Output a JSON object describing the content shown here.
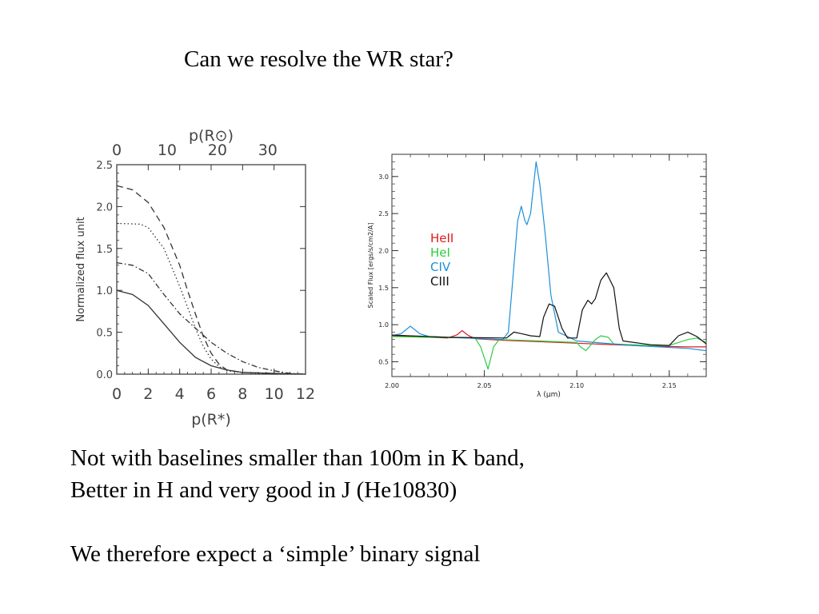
{
  "slide": {
    "title": "Can we resolve the WR star?",
    "body_lines": [
      "Not with baselines smaller than 100m in K band,",
      "Better in H and very good in J (He10830)",
      "We therefore expect a ‘simple’ binary signal"
    ]
  },
  "chart_data": [
    {
      "type": "line",
      "xlabel": "p(R*)",
      "ylabel": "Normalized flux unit",
      "top_axis_label": "p(R⊙)",
      "xlim": [
        0,
        12
      ],
      "ylim": [
        0,
        2.5
      ],
      "x_ticks": [
        "0",
        "2",
        "4",
        "6",
        "8",
        "10",
        "12"
      ],
      "y_ticks": [
        "0.0",
        "0.5",
        "1.0",
        "1.5",
        "2.0",
        "2.5"
      ],
      "top_ticks": [
        {
          "label": "0",
          "at_x": 0
        },
        {
          "label": "10",
          "at_x": 3.2
        },
        {
          "label": "20",
          "at_x": 6.4
        },
        {
          "label": "30",
          "at_x": 9.6
        }
      ],
      "series": [
        {
          "style": "dashed",
          "color": "#333333",
          "points": [
            [
              0,
              2.25
            ],
            [
              1,
              2.2
            ],
            [
              2,
              2.05
            ],
            [
              3,
              1.75
            ],
            [
              4,
              1.3
            ],
            [
              4.5,
              1.0
            ],
            [
              5,
              0.72
            ],
            [
              5.5,
              0.45
            ],
            [
              6,
              0.25
            ],
            [
              6.5,
              0.12
            ],
            [
              7,
              0.05
            ],
            [
              8,
              0.02
            ],
            [
              10,
              0.01
            ],
            [
              12,
              0.0
            ]
          ]
        },
        {
          "style": "dotted",
          "color": "#333333",
          "points": [
            [
              0,
              1.8
            ],
            [
              1.5,
              1.79
            ],
            [
              2,
              1.75
            ],
            [
              3,
              1.5
            ],
            [
              4,
              1.05
            ],
            [
              4.5,
              0.8
            ],
            [
              5,
              0.55
            ],
            [
              5.5,
              0.33
            ],
            [
              6,
              0.18
            ],
            [
              6.5,
              0.09
            ],
            [
              7,
              0.04
            ],
            [
              8,
              0.02
            ],
            [
              10,
              0.0
            ],
            [
              12,
              0.0
            ]
          ]
        },
        {
          "style": "dashdot",
          "color": "#333333",
          "points": [
            [
              0,
              1.33
            ],
            [
              1,
              1.3
            ],
            [
              2,
              1.2
            ],
            [
              3,
              0.95
            ],
            [
              4,
              0.72
            ],
            [
              5,
              0.55
            ],
            [
              6,
              0.38
            ],
            [
              7,
              0.25
            ],
            [
              8,
              0.15
            ],
            [
              9,
              0.08
            ],
            [
              10,
              0.04
            ],
            [
              11,
              0.01
            ],
            [
              12,
              0.0
            ]
          ]
        },
        {
          "style": "solid",
          "color": "#333333",
          "points": [
            [
              0,
              1.0
            ],
            [
              1,
              0.95
            ],
            [
              2,
              0.82
            ],
            [
              3,
              0.6
            ],
            [
              4,
              0.38
            ],
            [
              5,
              0.2
            ],
            [
              6,
              0.1
            ],
            [
              7,
              0.05
            ],
            [
              8,
              0.02
            ],
            [
              10,
              0.01
            ],
            [
              12,
              0.0
            ]
          ]
        }
      ]
    },
    {
      "type": "line",
      "xlabel": "λ (μm)",
      "ylabel": "Scaled Flux [ergs/s/cm2/A]",
      "xlim": [
        2.0,
        2.17
      ],
      "ylim": [
        0.3,
        3.3
      ],
      "x_ticks": [
        "2.00",
        "2.05",
        "2.10",
        "2.15"
      ],
      "y_ticks": [
        "0.5",
        "1.0",
        "1.5",
        "2.0",
        "2.5",
        "3.0"
      ],
      "legend_position": "upper-center",
      "series": [
        {
          "name": "HeII",
          "color": "#e31a1c",
          "points": [
            [
              2.0,
              0.85
            ],
            [
              2.01,
              0.84
            ],
            [
              2.02,
              0.83
            ],
            [
              2.03,
              0.82
            ],
            [
              2.035,
              0.86
            ],
            [
              2.038,
              0.92
            ],
            [
              2.041,
              0.86
            ],
            [
              2.045,
              0.81
            ],
            [
              2.06,
              0.79
            ],
            [
              2.08,
              0.77
            ],
            [
              2.1,
              0.75
            ],
            [
              2.12,
              0.73
            ],
            [
              2.14,
              0.71
            ],
            [
              2.16,
              0.7
            ],
            [
              2.17,
              0.7
            ]
          ]
        },
        {
          "name": "HeI",
          "color": "#2ecc40",
          "points": [
            [
              2.0,
              0.84
            ],
            [
              2.02,
              0.83
            ],
            [
              2.045,
              0.82
            ],
            [
              2.048,
              0.7
            ],
            [
              2.05,
              0.55
            ],
            [
              2.052,
              0.4
            ],
            [
              2.055,
              0.7
            ],
            [
              2.058,
              0.8
            ],
            [
              2.08,
              0.78
            ],
            [
              2.1,
              0.76
            ],
            [
              2.102,
              0.7
            ],
            [
              2.105,
              0.65
            ],
            [
              2.108,
              0.74
            ],
            [
              2.11,
              0.8
            ],
            [
              2.113,
              0.85
            ],
            [
              2.117,
              0.83
            ],
            [
              2.12,
              0.74
            ],
            [
              2.14,
              0.72
            ],
            [
              2.15,
              0.72
            ],
            [
              2.16,
              0.8
            ],
            [
              2.165,
              0.82
            ],
            [
              2.17,
              0.76
            ]
          ]
        },
        {
          "name": "CIV",
          "color": "#1e90d8",
          "points": [
            [
              2.0,
              0.85
            ],
            [
              2.005,
              0.88
            ],
            [
              2.01,
              0.98
            ],
            [
              2.015,
              0.88
            ],
            [
              2.02,
              0.84
            ],
            [
              2.04,
              0.82
            ],
            [
              2.06,
              0.8
            ],
            [
              2.063,
              0.9
            ],
            [
              2.065,
              1.5
            ],
            [
              2.068,
              2.4
            ],
            [
              2.07,
              2.6
            ],
            [
              2.072,
              2.4
            ],
            [
              2.073,
              2.35
            ],
            [
              2.075,
              2.5
            ],
            [
              2.078,
              3.2
            ],
            [
              2.08,
              2.9
            ],
            [
              2.083,
              2.2
            ],
            [
              2.086,
              1.4
            ],
            [
              2.09,
              0.9
            ],
            [
              2.1,
              0.78
            ],
            [
              2.13,
              0.72
            ],
            [
              2.16,
              0.68
            ],
            [
              2.17,
              0.65
            ]
          ]
        },
        {
          "name": "CIII",
          "color": "#111111",
          "points": [
            [
              2.0,
              0.86
            ],
            [
              2.03,
              0.83
            ],
            [
              2.062,
              0.82
            ],
            [
              2.066,
              0.9
            ],
            [
              2.07,
              0.88
            ],
            [
              2.075,
              0.85
            ],
            [
              2.08,
              0.84
            ],
            [
              2.082,
              1.1
            ],
            [
              2.085,
              1.28
            ],
            [
              2.088,
              1.25
            ],
            [
              2.092,
              0.95
            ],
            [
              2.095,
              0.82
            ],
            [
              2.1,
              0.82
            ],
            [
              2.103,
              1.2
            ],
            [
              2.106,
              1.33
            ],
            [
              2.108,
              1.28
            ],
            [
              2.11,
              1.35
            ],
            [
              2.113,
              1.6
            ],
            [
              2.116,
              1.7
            ],
            [
              2.12,
              1.5
            ],
            [
              2.123,
              0.95
            ],
            [
              2.125,
              0.78
            ],
            [
              2.14,
              0.73
            ],
            [
              2.15,
              0.72
            ],
            [
              2.155,
              0.85
            ],
            [
              2.16,
              0.9
            ],
            [
              2.165,
              0.84
            ],
            [
              2.17,
              0.74
            ]
          ]
        }
      ]
    }
  ]
}
